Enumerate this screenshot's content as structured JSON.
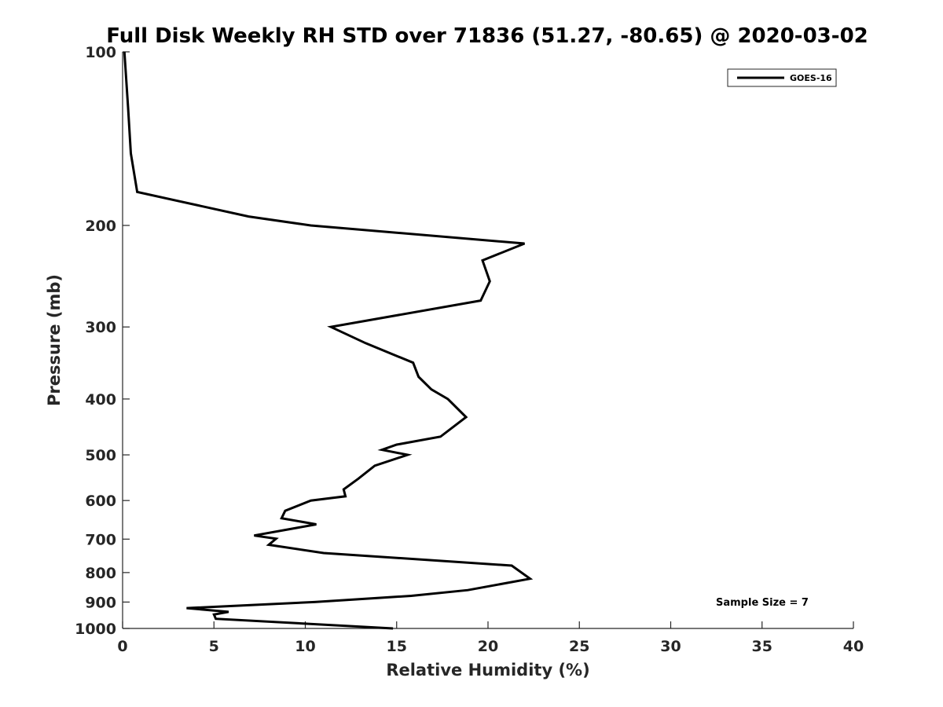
{
  "chart_data": {
    "type": "line",
    "title": "Full Disk Weekly RH STD over 71836 (51.27, -80.65) @ 2020-03-02",
    "xlabel": "Relative Humidity (%)",
    "ylabel": "Pressure (mb)",
    "xlim": [
      0,
      40
    ],
    "ylim": [
      100,
      1000
    ],
    "yscale": "log",
    "yreversed": true,
    "grid": false,
    "legend_placement": "top-right",
    "xticks": [
      0,
      5,
      10,
      15,
      20,
      25,
      30,
      35,
      40
    ],
    "yticks": [
      100,
      200,
      300,
      400,
      500,
      600,
      700,
      800,
      900,
      1000
    ],
    "series": [
      {
        "name": "GOES-16",
        "color": "#000000",
        "points": [
          [
            0.1,
            100
          ],
          [
            0.3,
            125
          ],
          [
            0.45,
            150
          ],
          [
            0.8,
            175
          ],
          [
            6.9,
            193
          ],
          [
            10.3,
            200
          ],
          [
            22.0,
            215
          ],
          [
            19.7,
            230
          ],
          [
            20.1,
            250
          ],
          [
            19.6,
            270
          ],
          [
            11.4,
            300
          ],
          [
            13.3,
            320
          ],
          [
            15.9,
            346
          ],
          [
            16.2,
            366
          ],
          [
            16.9,
            385
          ],
          [
            17.8,
            400
          ],
          [
            18.8,
            430
          ],
          [
            17.4,
            465
          ],
          [
            15.0,
            480
          ],
          [
            14.2,
            490
          ],
          [
            15.6,
            500
          ],
          [
            13.8,
            522
          ],
          [
            12.9,
            550
          ],
          [
            12.1,
            574
          ],
          [
            12.2,
            590
          ],
          [
            10.3,
            600
          ],
          [
            8.9,
            625
          ],
          [
            8.7,
            644
          ],
          [
            10.6,
            660
          ],
          [
            7.2,
            690
          ],
          [
            8.4,
            699
          ],
          [
            8.0,
            716
          ],
          [
            11.0,
            740
          ],
          [
            21.3,
            778
          ],
          [
            22.3,
            820
          ],
          [
            18.9,
            858
          ],
          [
            15.8,
            878
          ],
          [
            10.5,
            900
          ],
          [
            3.5,
            922
          ],
          [
            5.8,
            936
          ],
          [
            5.0,
            946
          ],
          [
            5.1,
            962
          ],
          [
            14.8,
            1000
          ]
        ]
      }
    ],
    "annotations": [
      "Sample Size = 7"
    ]
  }
}
